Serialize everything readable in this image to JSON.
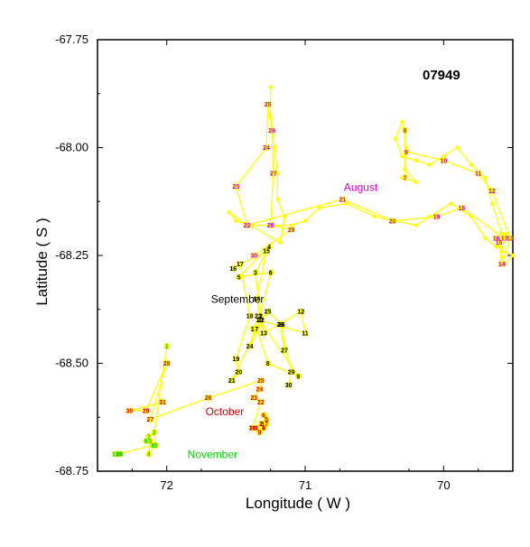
{
  "chart_data": {
    "type": "line",
    "title": "07949",
    "xlabel": "Longitude ( W )",
    "ylabel": "Latitude ( S )",
    "xlim": [
      72.5,
      69.5
    ],
    "ylim": [
      -68.75,
      -67.75
    ],
    "x_ticks": [
      72,
      71,
      70
    ],
    "x_tick_labels": [
      "72",
      "71",
      "70"
    ],
    "y_ticks": [
      -67.75,
      -68.0,
      -68.25,
      -68.5,
      -68.75
    ],
    "y_tick_labels": [
      "-67.75",
      "-68.00",
      "-68.25",
      "-68.50",
      "-68.75"
    ],
    "track_color": "#ffff00",
    "track": [
      [
        71.25,
        -67.86
      ],
      [
        71.25,
        -67.93
      ],
      [
        71.22,
        -68.0
      ],
      [
        71.2,
        -68.06
      ],
      [
        71.2,
        -68.12
      ],
      [
        71.15,
        -68.16
      ],
      [
        71.18,
        -68.22
      ],
      [
        71.4,
        -68.18
      ],
      [
        71.5,
        -68.17
      ],
      [
        71.55,
        -68.15
      ],
      [
        71.42,
        -68.18
      ],
      [
        71.38,
        -68.18
      ],
      [
        71.25,
        -68.18
      ],
      [
        71.1,
        -68.18
      ],
      [
        71.0,
        -68.17
      ],
      [
        70.9,
        -68.14
      ],
      [
        70.7,
        -68.13
      ],
      [
        70.5,
        -68.16
      ],
      [
        70.35,
        -68.17
      ],
      [
        70.2,
        -68.18
      ],
      [
        70.1,
        -68.16
      ],
      [
        69.95,
        -68.13
      ],
      [
        69.8,
        -68.16
      ],
      [
        69.7,
        -68.21
      ],
      [
        69.62,
        -68.23
      ],
      [
        69.55,
        -68.2
      ],
      [
        69.58,
        -68.24
      ],
      [
        69.5,
        -68.25
      ],
      [
        69.56,
        -68.27
      ],
      [
        69.6,
        -68.23
      ],
      [
        69.58,
        -68.2
      ],
      [
        69.65,
        -68.13
      ],
      [
        69.7,
        -68.07
      ],
      [
        69.8,
        -68.04
      ],
      [
        69.9,
        -68.0
      ],
      [
        70.0,
        -68.02
      ],
      [
        70.1,
        -68.04
      ],
      [
        70.2,
        -68.03
      ],
      [
        70.3,
        -68.02
      ],
      [
        70.35,
        -67.98
      ],
      [
        70.3,
        -67.94
      ],
      [
        70.27,
        -68.0
      ],
      [
        70.28,
        -68.05
      ],
      [
        70.2,
        -68.08
      ],
      [
        70.3,
        -68.07
      ]
    ],
    "series": [
      {
        "name": "August",
        "color": "#cc00cc",
        "points": [
          {
            "label": "7",
            "x": 70.28,
            "y": -68.07
          },
          {
            "label": "8",
            "x": 70.28,
            "y": -67.96
          },
          {
            "label": "9",
            "x": 70.27,
            "y": -68.01
          },
          {
            "label": "10",
            "x": 70.0,
            "y": -68.03
          },
          {
            "label": "11",
            "x": 69.75,
            "y": -68.06
          },
          {
            "label": "12",
            "x": 69.65,
            "y": -68.1
          },
          {
            "label": "13",
            "x": 69.52,
            "y": -68.21
          },
          {
            "label": "14",
            "x": 69.58,
            "y": -68.27
          },
          {
            "label": "15",
            "x": 69.6,
            "y": -68.22
          },
          {
            "label": "16",
            "x": 69.62,
            "y": -68.21
          },
          {
            "label": "17",
            "x": 69.56,
            "y": -68.21
          },
          {
            "label": "18",
            "x": 69.87,
            "y": -68.14
          },
          {
            "label": "19",
            "x": 70.05,
            "y": -68.16
          },
          {
            "label": "20",
            "x": 70.37,
            "y": -68.17
          },
          {
            "label": "21",
            "x": 70.73,
            "y": -68.12
          },
          {
            "label": "22",
            "x": 71.42,
            "y": -68.18
          },
          {
            "label": "23",
            "x": 71.5,
            "y": -68.09
          },
          {
            "label": "24",
            "x": 71.28,
            "y": -68.0
          },
          {
            "label": "25",
            "x": 71.27,
            "y": -67.9
          },
          {
            "label": "26",
            "x": 71.24,
            "y": -67.96
          },
          {
            "label": "27",
            "x": 71.23,
            "y": -68.06
          },
          {
            "label": "28",
            "x": 71.25,
            "y": -68.18
          },
          {
            "label": "29",
            "x": 71.1,
            "y": -68.19
          },
          {
            "label": "30",
            "x": 71.37,
            "y": -68.25
          }
        ]
      },
      {
        "name": "September",
        "color": "#000000",
        "points": [
          {
            "label": "1",
            "x": 71.38,
            "y": -68.42
          },
          {
            "label": "2",
            "x": 71.32,
            "y": -68.39
          },
          {
            "label": "3",
            "x": 71.36,
            "y": -68.29
          },
          {
            "label": "4",
            "x": 71.26,
            "y": -68.23
          },
          {
            "label": "5",
            "x": 71.48,
            "y": -68.3
          },
          {
            "label": "6",
            "x": 71.25,
            "y": -68.29
          },
          {
            "label": "7",
            "x": 71.35,
            "y": -68.42
          },
          {
            "label": "8",
            "x": 71.27,
            "y": -68.5
          },
          {
            "label": "9",
            "x": 71.05,
            "y": -68.53
          },
          {
            "label": "10",
            "x": 71.33,
            "y": -68.4
          },
          {
            "label": "11",
            "x": 71.0,
            "y": -68.43
          },
          {
            "label": "12",
            "x": 71.03,
            "y": -68.38
          },
          {
            "label": "13",
            "x": 71.3,
            "y": -68.43
          },
          {
            "label": "14",
            "x": 71.35,
            "y": -68.35
          },
          {
            "label": "15",
            "x": 71.28,
            "y": -68.24
          },
          {
            "label": "16",
            "x": 71.52,
            "y": -68.28
          },
          {
            "label": "17",
            "x": 71.47,
            "y": -68.27
          },
          {
            "label": "18",
            "x": 71.4,
            "y": -68.39
          },
          {
            "label": "19",
            "x": 71.5,
            "y": -68.49
          },
          {
            "label": "20",
            "x": 71.48,
            "y": -68.52
          },
          {
            "label": "21",
            "x": 71.53,
            "y": -68.54
          },
          {
            "label": "22",
            "x": 71.32,
            "y": -68.4
          },
          {
            "label": "23",
            "x": 71.34,
            "y": -68.39
          },
          {
            "label": "24",
            "x": 71.4,
            "y": -68.46
          },
          {
            "label": "25",
            "x": 71.27,
            "y": -68.38
          },
          {
            "label": "26",
            "x": 71.17,
            "y": -68.41
          },
          {
            "label": "27",
            "x": 71.15,
            "y": -68.47
          },
          {
            "label": "28",
            "x": 71.18,
            "y": -68.41
          },
          {
            "label": "29",
            "x": 71.1,
            "y": -68.52
          },
          {
            "label": "30",
            "x": 71.12,
            "y": -68.55
          }
        ]
      },
      {
        "name": "October",
        "color": "#cc0000",
        "points": [
          {
            "label": "1",
            "x": 71.35,
            "y": -68.65
          },
          {
            "label": "2",
            "x": 71.32,
            "y": -68.64
          },
          {
            "label": "3",
            "x": 71.3,
            "y": -68.65
          },
          {
            "label": "4",
            "x": 71.3,
            "y": -68.65
          },
          {
            "label": "5",
            "x": 71.28,
            "y": -68.63
          },
          {
            "label": "6",
            "x": 71.3,
            "y": -68.62
          },
          {
            "label": "7",
            "x": 71.28,
            "y": -68.64
          },
          {
            "label": "8",
            "x": 71.31,
            "y": -68.64
          },
          {
            "label": "9",
            "x": 71.33,
            "y": -68.66
          },
          {
            "label": "10",
            "x": 71.38,
            "y": -68.65
          },
          {
            "label": "21",
            "x": 71.38,
            "y": -68.65
          },
          {
            "label": "22",
            "x": 71.32,
            "y": -68.59
          },
          {
            "label": "23",
            "x": 71.37,
            "y": -68.58
          },
          {
            "label": "24",
            "x": 71.33,
            "y": -68.56
          },
          {
            "label": "25",
            "x": 71.32,
            "y": -68.54
          },
          {
            "label": "26",
            "x": 71.7,
            "y": -68.58
          },
          {
            "label": "27",
            "x": 72.12,
            "y": -68.63
          },
          {
            "label": "28",
            "x": 72.0,
            "y": -68.5
          },
          {
            "label": "29",
            "x": 72.15,
            "y": -68.61
          },
          {
            "label": "30",
            "x": 72.27,
            "y": -68.61
          },
          {
            "label": "31",
            "x": 72.03,
            "y": -68.59
          }
        ]
      },
      {
        "name": "November",
        "color": "#00cc00",
        "points": [
          {
            "label": "1",
            "x": 72.0,
            "y": -68.46
          },
          {
            "label": "2",
            "x": 72.09,
            "y": -68.66
          },
          {
            "label": "3",
            "x": 72.08,
            "y": -68.69
          },
          {
            "label": "4",
            "x": 72.13,
            "y": -68.71
          },
          {
            "label": "5",
            "x": 72.12,
            "y": -68.68
          },
          {
            "label": "6",
            "x": 72.15,
            "y": -68.68
          },
          {
            "label": "7",
            "x": 72.13,
            "y": -68.67
          },
          {
            "label": "8",
            "x": 72.1,
            "y": -68.69
          },
          {
            "label": "16",
            "x": 72.35,
            "y": -68.71
          },
          {
            "label": "17",
            "x": 72.37,
            "y": -68.71
          },
          {
            "label": "18",
            "x": 72.34,
            "y": -68.71
          }
        ]
      }
    ],
    "annotations": [
      {
        "text": "August",
        "color": "#cc00cc",
        "x": 70.72,
        "y": -68.1
      },
      {
        "text": "September",
        "color": "#000000",
        "x": 71.68,
        "y": -68.36
      },
      {
        "text": "October",
        "color": "#cc0000",
        "x": 71.72,
        "y": -68.62
      },
      {
        "text": "November",
        "color": "#00cc00",
        "x": 71.85,
        "y": -68.72
      }
    ]
  }
}
